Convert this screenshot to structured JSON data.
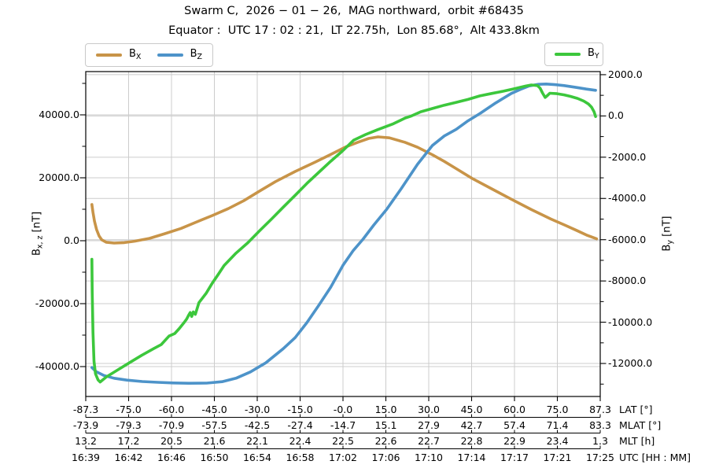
{
  "title": "Swarm C,  2026 − 01 − 26,  MAG northward,  orbit #68435",
  "subtitle": "Equator :  UTC 17 : 02 : 21,  LT 22.75h,  Lon 85.68°,  Alt 433.8km",
  "colors": {
    "bx": "#c89448",
    "bz": "#4d93c9",
    "by": "#3cc73c",
    "grid": "#cccccc",
    "spine": "#000000"
  },
  "legend_left": {
    "entries": [
      {
        "base": "B",
        "sub": "X",
        "color_key": "bx"
      },
      {
        "base": "B",
        "sub": "Z",
        "color_key": "bz"
      }
    ]
  },
  "legend_right": {
    "entries": [
      {
        "base": "B",
        "sub": "Y",
        "color_key": "by"
      }
    ]
  },
  "chart_data": {
    "type": "line",
    "left_axis": {
      "label_base": "B",
      "label_sub": "x, z",
      "label_unit": " [nT]",
      "ylim": [
        -49500,
        53750
      ],
      "tick_values": [
        40000,
        20000,
        0,
        -20000,
        -40000
      ],
      "tick_labels": [
        "40000.0",
        "20000.0",
        "0.0",
        "-20000.0",
        "-40000.0"
      ],
      "minor_ticks": [
        50000,
        30000,
        10000,
        -10000,
        -30000
      ]
    },
    "right_axis": {
      "label_base": "B",
      "label_sub": "y",
      "label_unit": " [nT]",
      "ylim": [
        -13600,
        2150
      ],
      "tick_values": [
        2000,
        0,
        -2000,
        -4000,
        -6000,
        -8000,
        -10000,
        -12000
      ],
      "tick_labels": [
        "2000.0",
        "0.0",
        "-2000.0",
        "-4000.0",
        "-6000.0",
        "-8000.0",
        "-10000.0",
        "-12000.0"
      ],
      "minor_ticks": [
        1000,
        -1000,
        -3000,
        -5000,
        -7000,
        -9000,
        -11000,
        -13000
      ]
    },
    "grid": true,
    "x_tick_count": 13,
    "x_rows": [
      {
        "label": "LAT [°]",
        "values": [
          "-87.3",
          "-75.0",
          "-60.0",
          "-45.0",
          "-30.0",
          "-15.0",
          "-0.0",
          "15.0",
          "30.0",
          "45.0",
          "60.0",
          "75.0",
          "87.3"
        ]
      },
      {
        "label": "MLAT [°]",
        "values": [
          "-73.9",
          "-79.3",
          "-70.9",
          "-57.5",
          "-42.5",
          "-27.4",
          "-14.7",
          "15.1",
          "27.9",
          "42.7",
          "57.4",
          "71.4",
          "83.3"
        ]
      },
      {
        "label": "MLT [h]",
        "values": [
          "13.2",
          "17.2",
          "20.5",
          "21.6",
          "22.1",
          "22.4",
          "22.5",
          "22.6",
          "22.7",
          "22.8",
          "22.9",
          "23.4",
          "1.3"
        ]
      },
      {
        "label": "UTC [HH : MM]",
        "values": [
          "16:39",
          "16:42",
          "16:46",
          "16:50",
          "16:54",
          "16:58",
          "17:02",
          "17:06",
          "17:10",
          "17:14",
          "17:17",
          "17:21",
          "17:25"
        ]
      }
    ],
    "series": [
      {
        "name": "BX",
        "axis": "left",
        "color_key": "bx",
        "points": [
          [
            0.012,
            11500
          ],
          [
            0.014,
            9000
          ],
          [
            0.017,
            6200
          ],
          [
            0.021,
            3600
          ],
          [
            0.026,
            1500
          ],
          [
            0.031,
            300
          ],
          [
            0.04,
            -500
          ],
          [
            0.055,
            -750
          ],
          [
            0.075,
            -600
          ],
          [
            0.095,
            -150
          ],
          [
            0.124,
            750
          ],
          [
            0.154,
            2250
          ],
          [
            0.185,
            3900
          ],
          [
            0.216,
            6000
          ],
          [
            0.246,
            8000
          ],
          [
            0.277,
            10200
          ],
          [
            0.307,
            12700
          ],
          [
            0.338,
            15800
          ],
          [
            0.369,
            18800
          ],
          [
            0.407,
            22000
          ],
          [
            0.445,
            24900
          ],
          [
            0.475,
            27300
          ],
          [
            0.505,
            29800
          ],
          [
            0.529,
            31300
          ],
          [
            0.55,
            32500
          ],
          [
            0.568,
            33000
          ],
          [
            0.59,
            32700
          ],
          [
            0.62,
            31300
          ],
          [
            0.645,
            29700
          ],
          [
            0.674,
            27300
          ],
          [
            0.697,
            25200
          ],
          [
            0.72,
            22900
          ],
          [
            0.751,
            19800
          ],
          [
            0.789,
            16500
          ],
          [
            0.827,
            13200
          ],
          [
            0.866,
            9900
          ],
          [
            0.904,
            6900
          ],
          [
            0.932,
            4900
          ],
          [
            0.955,
            3200
          ],
          [
            0.975,
            1700
          ],
          [
            0.993,
            600
          ]
        ]
      },
      {
        "name": "BZ",
        "axis": "left",
        "color_key": "bz",
        "points": [
          [
            0.012,
            -40300
          ],
          [
            0.02,
            -41600
          ],
          [
            0.035,
            -42800
          ],
          [
            0.055,
            -43700
          ],
          [
            0.08,
            -44300
          ],
          [
            0.11,
            -44750
          ],
          [
            0.14,
            -45000
          ],
          [
            0.17,
            -45200
          ],
          [
            0.2,
            -45300
          ],
          [
            0.235,
            -45250
          ],
          [
            0.265,
            -44800
          ],
          [
            0.292,
            -43700
          ],
          [
            0.32,
            -41700
          ],
          [
            0.35,
            -38800
          ],
          [
            0.384,
            -34300
          ],
          [
            0.407,
            -30800
          ],
          [
            0.43,
            -26000
          ],
          [
            0.453,
            -20500
          ],
          [
            0.476,
            -14800
          ],
          [
            0.5,
            -7800
          ],
          [
            0.52,
            -3100
          ],
          [
            0.539,
            500
          ],
          [
            0.56,
            5000
          ],
          [
            0.585,
            10000
          ],
          [
            0.613,
            16500
          ],
          [
            0.645,
            24300
          ],
          [
            0.674,
            30300
          ],
          [
            0.697,
            33300
          ],
          [
            0.72,
            35400
          ],
          [
            0.743,
            38100
          ],
          [
            0.766,
            40400
          ],
          [
            0.797,
            43800
          ],
          [
            0.827,
            46800
          ],
          [
            0.845,
            48100
          ],
          [
            0.862,
            49200
          ],
          [
            0.88,
            49700
          ],
          [
            0.895,
            49800
          ],
          [
            0.912,
            49600
          ],
          [
            0.93,
            49300
          ],
          [
            0.954,
            48700
          ],
          [
            0.973,
            48200
          ],
          [
            0.991,
            47800
          ]
        ]
      },
      {
        "name": "BY",
        "axis": "right",
        "color_key": "by",
        "points": [
          [
            0.012,
            -6950
          ],
          [
            0.0125,
            -8500
          ],
          [
            0.014,
            -10500
          ],
          [
            0.016,
            -11900
          ],
          [
            0.019,
            -12500
          ],
          [
            0.024,
            -12800
          ],
          [
            0.028,
            -12900
          ],
          [
            0.04,
            -12650
          ],
          [
            0.063,
            -12300
          ],
          [
            0.086,
            -11950
          ],
          [
            0.109,
            -11600
          ],
          [
            0.132,
            -11280
          ],
          [
            0.147,
            -11080
          ],
          [
            0.162,
            -10670
          ],
          [
            0.173,
            -10550
          ],
          [
            0.182,
            -10300
          ],
          [
            0.19,
            -10050
          ],
          [
            0.196,
            -9850
          ],
          [
            0.2,
            -9660
          ],
          [
            0.203,
            -9530
          ],
          [
            0.206,
            -9720
          ],
          [
            0.209,
            -9500
          ],
          [
            0.213,
            -9620
          ],
          [
            0.22,
            -9050
          ],
          [
            0.234,
            -8600
          ],
          [
            0.246,
            -8100
          ],
          [
            0.257,
            -7700
          ],
          [
            0.269,
            -7250
          ],
          [
            0.292,
            -6650
          ],
          [
            0.315,
            -6150
          ],
          [
            0.338,
            -5560
          ],
          [
            0.361,
            -5000
          ],
          [
            0.384,
            -4420
          ],
          [
            0.407,
            -3850
          ],
          [
            0.43,
            -3270
          ],
          [
            0.453,
            -2730
          ],
          [
            0.476,
            -2200
          ],
          [
            0.499,
            -1700
          ],
          [
            0.521,
            -1170
          ],
          [
            0.544,
            -900
          ],
          [
            0.567,
            -670
          ],
          [
            0.598,
            -380
          ],
          [
            0.621,
            -100
          ],
          [
            0.633,
            0
          ],
          [
            0.651,
            200
          ],
          [
            0.674,
            360
          ],
          [
            0.697,
            520
          ],
          [
            0.72,
            660
          ],
          [
            0.743,
            800
          ],
          [
            0.766,
            970
          ],
          [
            0.789,
            1090
          ],
          [
            0.812,
            1200
          ],
          [
            0.835,
            1330
          ],
          [
            0.855,
            1450
          ],
          [
            0.866,
            1500
          ],
          [
            0.878,
            1470
          ],
          [
            0.883,
            1350
          ],
          [
            0.888,
            1100
          ],
          [
            0.893,
            900
          ],
          [
            0.897,
            980
          ],
          [
            0.902,
            1100
          ],
          [
            0.916,
            1080
          ],
          [
            0.93,
            1020
          ],
          [
            0.942,
            950
          ],
          [
            0.956,
            850
          ],
          [
            0.968,
            720
          ],
          [
            0.977,
            580
          ],
          [
            0.983,
            430
          ],
          [
            0.988,
            200
          ],
          [
            0.991,
            -30
          ]
        ]
      }
    ]
  }
}
